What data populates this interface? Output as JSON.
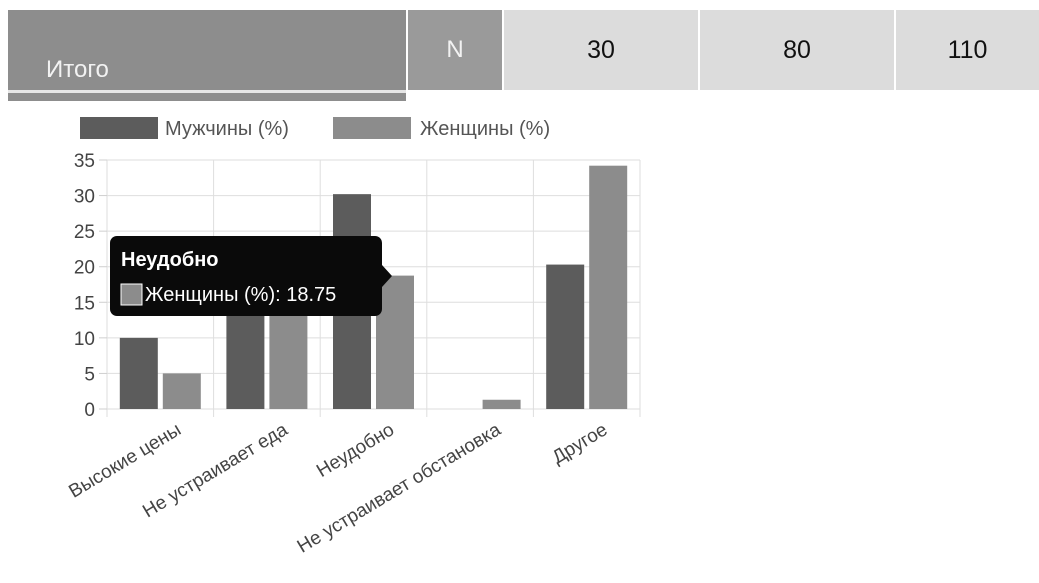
{
  "table": {
    "label": "Итого",
    "n_label": "N",
    "values": [
      "30",
      "80",
      "110"
    ]
  },
  "tooltip": {
    "title": "Неудобно",
    "text": "Женщины (%): 18.75"
  },
  "colors": {
    "men": "#5c5c5c",
    "women": "#8c8c8c",
    "tooltip_bg": "#0a0a0a"
  },
  "chart_data": {
    "type": "bar",
    "categories": [
      "Высокие цены",
      "Не устраивает еда",
      "Неудобно",
      "Не устраивает обстановка",
      "Другое"
    ],
    "series": [
      {
        "name": "Мужчины (%)",
        "values": [
          10,
          16,
          30.2,
          0,
          20.3
        ]
      },
      {
        "name": "Женщины (%)",
        "values": [
          5,
          16,
          18.75,
          1.3,
          34.2
        ]
      }
    ],
    "ylim": [
      0,
      35
    ],
    "yticks": [
      0,
      5,
      10,
      15,
      20,
      25,
      30,
      35
    ],
    "grid": true,
    "legend": "top"
  }
}
